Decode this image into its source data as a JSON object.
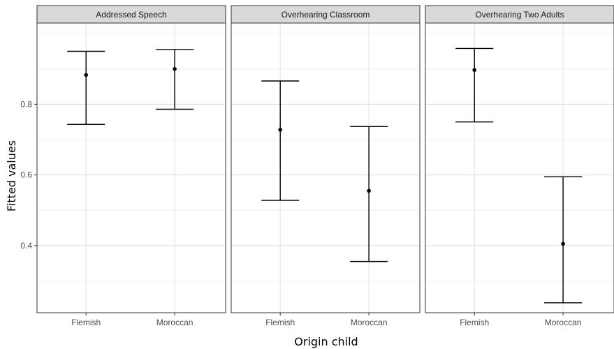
{
  "chart_data": {
    "type": "errorbar",
    "title": "",
    "xlabel": "Origin child",
    "ylabel": "Fitted values",
    "ylim": [
      0.21,
      1.03
    ],
    "y_ticks": [
      0.4,
      0.6,
      0.8
    ],
    "y_ticks_labels": [
      "0.4",
      "0.6",
      "0.8"
    ],
    "y_minor_gridlines": [
      0.3,
      0.5,
      0.7,
      0.9,
      1.0
    ],
    "grid": true,
    "categories": [
      "Flemish",
      "Moroccan"
    ],
    "panels": [
      {
        "name": "Addressed Speech",
        "points": [
          {
            "category": "Flemish",
            "value": 0.883,
            "lower": 0.743,
            "upper": 0.95
          },
          {
            "category": "Moroccan",
            "value": 0.9,
            "lower": 0.786,
            "upper": 0.955
          }
        ]
      },
      {
        "name": "Overhearing Classroom",
        "points": [
          {
            "category": "Flemish",
            "value": 0.728,
            "lower": 0.528,
            "upper": 0.866
          },
          {
            "category": "Moroccan",
            "value": 0.555,
            "lower": 0.355,
            "upper": 0.737
          }
        ]
      },
      {
        "name": "Overhearing Two Adults",
        "points": [
          {
            "category": "Flemish",
            "value": 0.897,
            "lower": 0.75,
            "upper": 0.958
          },
          {
            "category": "Moroccan",
            "value": 0.405,
            "lower": 0.238,
            "upper": 0.595
          }
        ]
      }
    ]
  }
}
